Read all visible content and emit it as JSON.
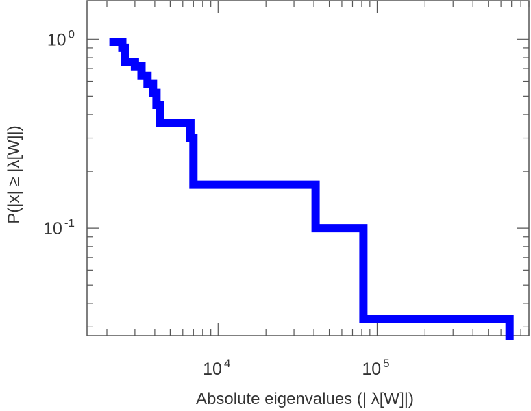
{
  "chart_data": {
    "type": "line",
    "style": "step",
    "x_scale": "log",
    "y_scale": "log",
    "xlim": [
      1500,
      900000
    ],
    "ylim": [
      0.027,
      1.6
    ],
    "grid": false,
    "series": [
      {
        "color": "#0000ff",
        "x": [
          2200,
          2500,
          2600,
          3000,
          3300,
          3600,
          3900,
          4100,
          4300,
          6700,
          7000,
          41000,
          82000,
          680000
        ],
        "y": [
          0.97,
          0.9,
          0.76,
          0.72,
          0.64,
          0.58,
          0.52,
          0.45,
          0.36,
          0.3,
          0.17,
          0.1,
          0.033,
          0.027
        ]
      }
    ],
    "x_ticks": [
      {
        "value": 10000,
        "base": "10",
        "exp": "4"
      },
      {
        "value": 100000,
        "base": "10",
        "exp": "5"
      }
    ],
    "y_ticks": [
      {
        "value": 1,
        "base": "10",
        "exp": "0"
      },
      {
        "value": 0.1,
        "base": "10",
        "exp": "-1"
      }
    ],
    "xlabel": "Absolute eigenvalues (|     λ[W]|)",
    "ylabel": "P(|x|  ≥ |λ[W]|)"
  }
}
